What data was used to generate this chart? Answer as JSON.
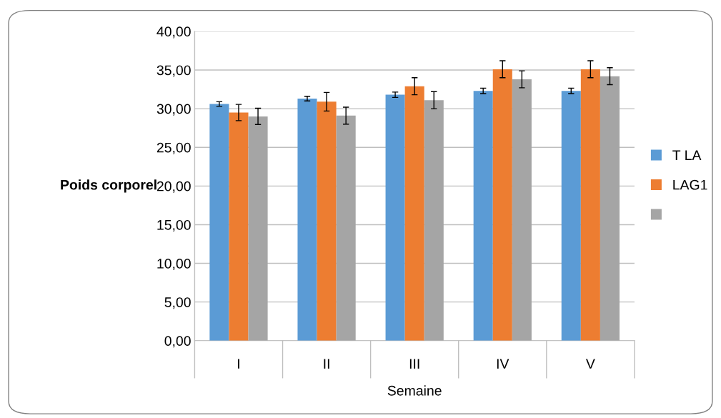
{
  "chart_data": {
    "type": "bar",
    "xlabel": "Semaine",
    "ylabel": "Poids corporel",
    "categories": [
      "I",
      "II",
      "III",
      "IV",
      "V"
    ],
    "series": [
      {
        "name": "T LA",
        "color": "#5b9bd5",
        "values": [
          30.6,
          31.3,
          31.8,
          32.3,
          32.3
        ],
        "errors": [
          0.3,
          0.3,
          0.35,
          0.35,
          0.35
        ]
      },
      {
        "name": "LAG1",
        "color": "#ed7d31",
        "values": [
          29.5,
          30.9,
          32.9,
          35.1,
          35.1
        ],
        "errors": [
          1.05,
          1.2,
          1.1,
          1.1,
          1.1
        ]
      },
      {
        "color": "#a5a5a5",
        "values": [
          29.0,
          29.1,
          31.1,
          33.8,
          34.2
        ],
        "errors": [
          1.05,
          1.1,
          1.1,
          1.1,
          1.1
        ]
      }
    ],
    "ylim": [
      0,
      40
    ],
    "yticks": [
      {
        "value": 0,
        "label": "0,00"
      },
      {
        "value": 5,
        "label": "5,00"
      },
      {
        "value": 10,
        "label": "10,00"
      },
      {
        "value": 15,
        "label": "15,00"
      },
      {
        "value": 20,
        "label": "20,00"
      },
      {
        "value": 25,
        "label": "25,00"
      },
      {
        "value": 30,
        "label": "30,00"
      },
      {
        "value": 35,
        "label": "35,00"
      },
      {
        "value": 40,
        "label": "40,00"
      }
    ],
    "grid": "y",
    "legend": "right"
  }
}
